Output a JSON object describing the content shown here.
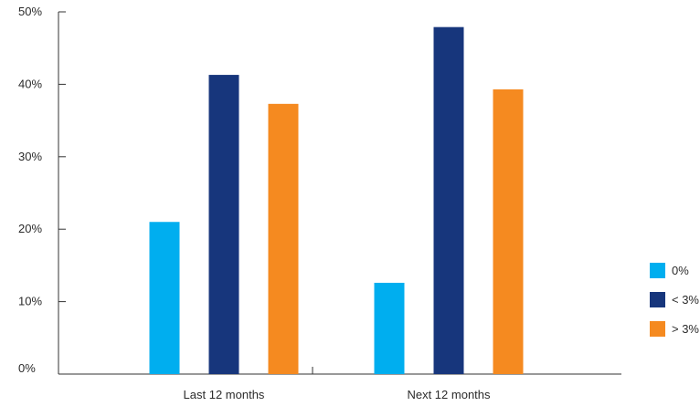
{
  "chart_data": {
    "type": "bar",
    "title": "",
    "xlabel": "",
    "ylabel": "",
    "categories": [
      "Last 12 months",
      "Next 12 months"
    ],
    "series": [
      {
        "name": "0%",
        "color": "#00aeef",
        "values": [
          21,
          12.6
        ]
      },
      {
        "name": "< 3%",
        "color": "#17367c",
        "values": [
          41.3,
          47.9
        ]
      },
      {
        "name": "> 3%",
        "color": "#f58a20",
        "values": [
          37.3,
          39.3
        ]
      }
    ],
    "ylim": [
      0,
      50
    ],
    "yticks": [
      0,
      10,
      20,
      30,
      40,
      50
    ],
    "ytick_labels": [
      "0%",
      "10%",
      "20%",
      "30%",
      "40%",
      "50%"
    ],
    "grid": false,
    "legend_position": "right"
  }
}
